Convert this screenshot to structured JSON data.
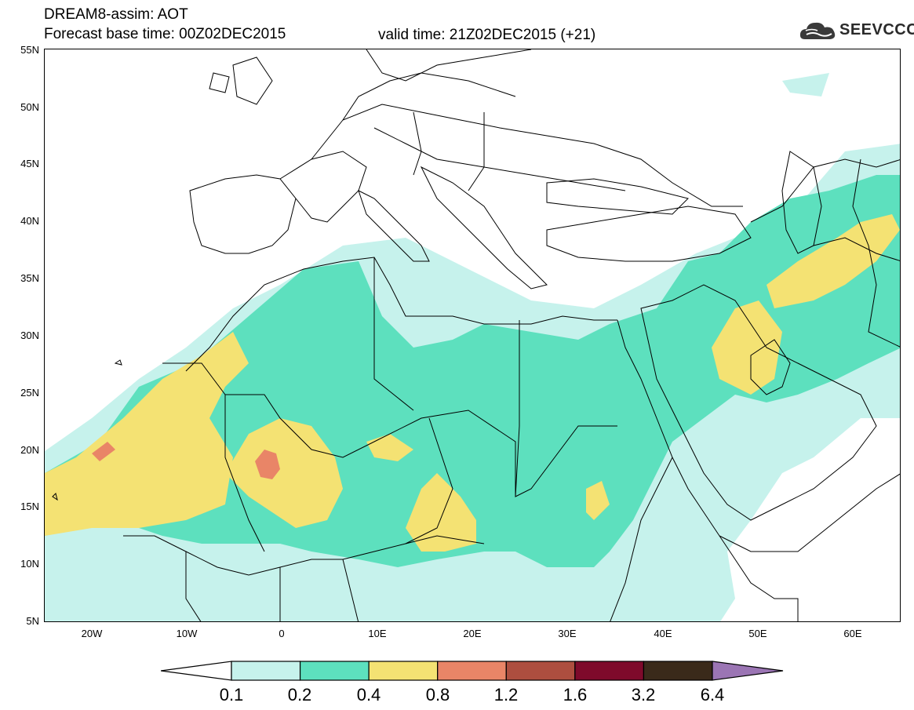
{
  "header": {
    "title_line1": "DREAM8-assim: AOT",
    "title_line2": "Forecast base time: 00Z02DEC2015",
    "valid_time": "valid time: 21Z02DEC2015 (+21)"
  },
  "logo": {
    "text": "SEEVCCC",
    "icon": "cloud-icon"
  },
  "map": {
    "lat_labels": [
      "55N",
      "50N",
      "45N",
      "40N",
      "35N",
      "30N",
      "25N",
      "20N",
      "15N",
      "10N",
      "5N"
    ],
    "lon_labels": [
      "20W",
      "10W",
      "0",
      "10E",
      "20E",
      "30E",
      "40E",
      "50E",
      "60E"
    ],
    "lon_range": [
      -25,
      65
    ],
    "lat_range": [
      5,
      55
    ],
    "colors": {
      "c01": "#c6f2ec",
      "c02": "#5de0be",
      "c04": "#f4e273",
      "c08": "#e98567",
      "c12": "#ad4e3f",
      "c16": "#7e0a2b",
      "c32": "#3a2a1a",
      "c64": "#9b75b4",
      "border": "#000000"
    }
  },
  "legend": {
    "labels": [
      "0.1",
      "0.2",
      "0.4",
      "0.8",
      "1.2",
      "1.6",
      "3.2",
      "6.4"
    ],
    "colors": [
      "#c6f2ec",
      "#5de0be",
      "#f4e273",
      "#e98567",
      "#ad4e3f",
      "#7e0a2b",
      "#3a2a1a"
    ],
    "under_color": "#ffffff",
    "over_color": "#9b75b4"
  }
}
